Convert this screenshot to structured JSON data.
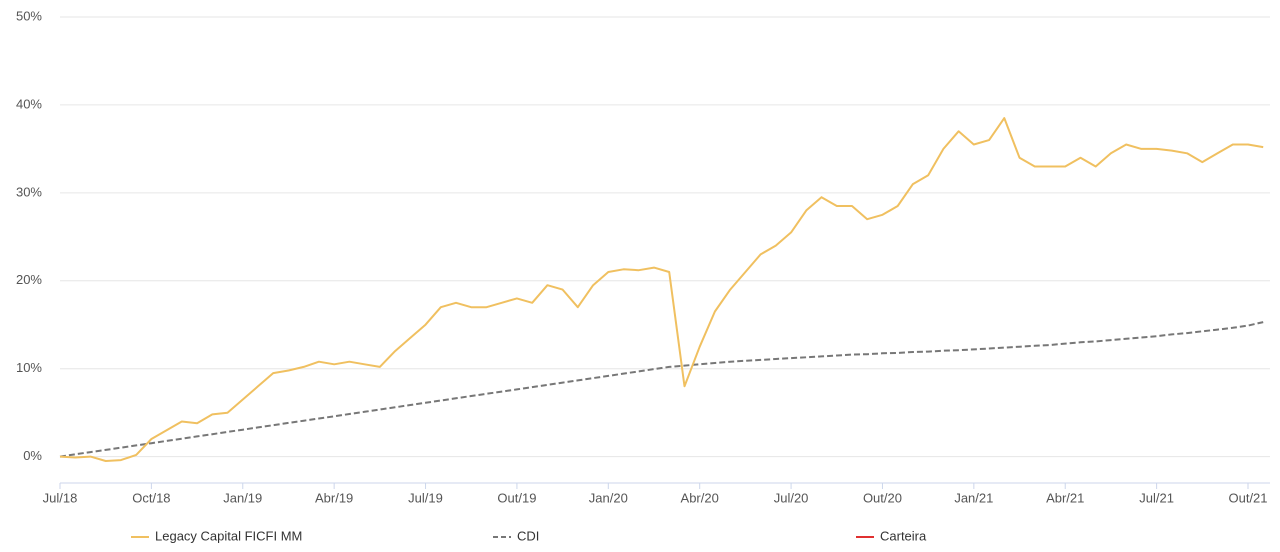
{
  "chart_data": {
    "type": "line",
    "categories": [
      "Jul/18",
      null,
      null,
      null,
      null,
      null,
      "Oct/18",
      null,
      null,
      null,
      null,
      null,
      "Jan/19",
      null,
      null,
      null,
      null,
      null,
      "Abr/19",
      null,
      null,
      null,
      null,
      null,
      "Jul/19",
      null,
      null,
      null,
      null,
      null,
      "Out/19",
      null,
      null,
      null,
      null,
      null,
      "Jan/20",
      null,
      null,
      null,
      null,
      null,
      "Abr/20",
      null,
      null,
      null,
      null,
      null,
      "Jul/20",
      null,
      null,
      null,
      null,
      null,
      "Out/20",
      null,
      null,
      null,
      null,
      null,
      "Jan/21",
      null,
      null,
      null,
      null,
      null,
      "Abr/21",
      null,
      null,
      null,
      null,
      null,
      "Jul/21",
      null,
      null,
      null,
      null,
      null,
      "Out/21",
      null
    ],
    "series": [
      {
        "name": "Legacy Capital FICFI MM",
        "color": "#f0c060",
        "dash": false,
        "values": [
          0,
          -0.1,
          0,
          -0.5,
          -0.4,
          0.2,
          2.0,
          3.0,
          4.0,
          3.8,
          4.8,
          5.0,
          6.5,
          8.0,
          9.5,
          9.8,
          10.2,
          10.8,
          10.5,
          10.8,
          10.5,
          10.2,
          12,
          13.5,
          15,
          17,
          17.5,
          17.0,
          17.0,
          17.5,
          18,
          17.5,
          19.5,
          19.0,
          17.0,
          19.5,
          21,
          21.3,
          21.2,
          21.5,
          21,
          8,
          12.5,
          16.5,
          19,
          21,
          23,
          24,
          25.5,
          28,
          29.5,
          28.5,
          28.5,
          27,
          27.5,
          28.5,
          31,
          32,
          35,
          37,
          35.5,
          36,
          38.5,
          34,
          33,
          33,
          33,
          34,
          33,
          34.5,
          35.5,
          35.0,
          35,
          34.8,
          34.5,
          33.5,
          34.5,
          35.5,
          35.5,
          35.2
        ]
      },
      {
        "name": "CDI",
        "color": "#777777",
        "dash": true,
        "values": [
          0,
          0.26,
          0.51,
          0.77,
          1.02,
          1.28,
          1.53,
          1.79,
          2.04,
          2.3,
          2.55,
          2.81,
          3.06,
          3.32,
          3.57,
          3.83,
          4.08,
          4.34,
          4.59,
          4.85,
          5.1,
          5.36,
          5.61,
          5.87,
          6.12,
          6.38,
          6.63,
          6.89,
          7.14,
          7.4,
          7.65,
          7.91,
          8.16,
          8.42,
          8.67,
          8.93,
          9.18,
          9.44,
          9.69,
          9.95,
          10.2,
          10.35,
          10.5,
          10.65,
          10.8,
          10.9,
          11.0,
          11.1,
          11.2,
          11.3,
          11.4,
          11.5,
          11.6,
          11.65,
          11.75,
          11.8,
          11.9,
          11.95,
          12.05,
          12.1,
          12.2,
          12.3,
          12.4,
          12.5,
          12.6,
          12.7,
          12.85,
          13.0,
          13.1,
          13.25,
          13.4,
          13.55,
          13.7,
          13.9,
          14.05,
          14.25,
          14.45,
          14.65,
          14.9,
          15.3
        ]
      },
      {
        "name": "Carteira",
        "color": "#e03030",
        "dash": false,
        "values": [
          null,
          null,
          null,
          null,
          null,
          null,
          null,
          null,
          null,
          null,
          null,
          null,
          null,
          null,
          null,
          null,
          null,
          null,
          null,
          null,
          null,
          null,
          null,
          null,
          null,
          null,
          null,
          null,
          null,
          null,
          null,
          null,
          null,
          null,
          null,
          null,
          null,
          null,
          null,
          null,
          null,
          null,
          null,
          null,
          null,
          null,
          null,
          null,
          null,
          null,
          null,
          null,
          null,
          null,
          null,
          null,
          null,
          null,
          null,
          null,
          null,
          null,
          null,
          null,
          null,
          null,
          null,
          null,
          null,
          null,
          null,
          null,
          null,
          null,
          null,
          null,
          null,
          null,
          null,
          null
        ]
      }
    ],
    "ylim": [
      -3,
      50
    ],
    "yticks": [
      {
        "value": 0,
        "label": "0%"
      },
      {
        "value": 10,
        "label": "10%"
      },
      {
        "value": 20,
        "label": "20%"
      },
      {
        "value": 30,
        "label": "30%"
      },
      {
        "value": 40,
        "label": "40%"
      },
      {
        "value": 50,
        "label": "50%"
      }
    ],
    "grid": true
  }
}
